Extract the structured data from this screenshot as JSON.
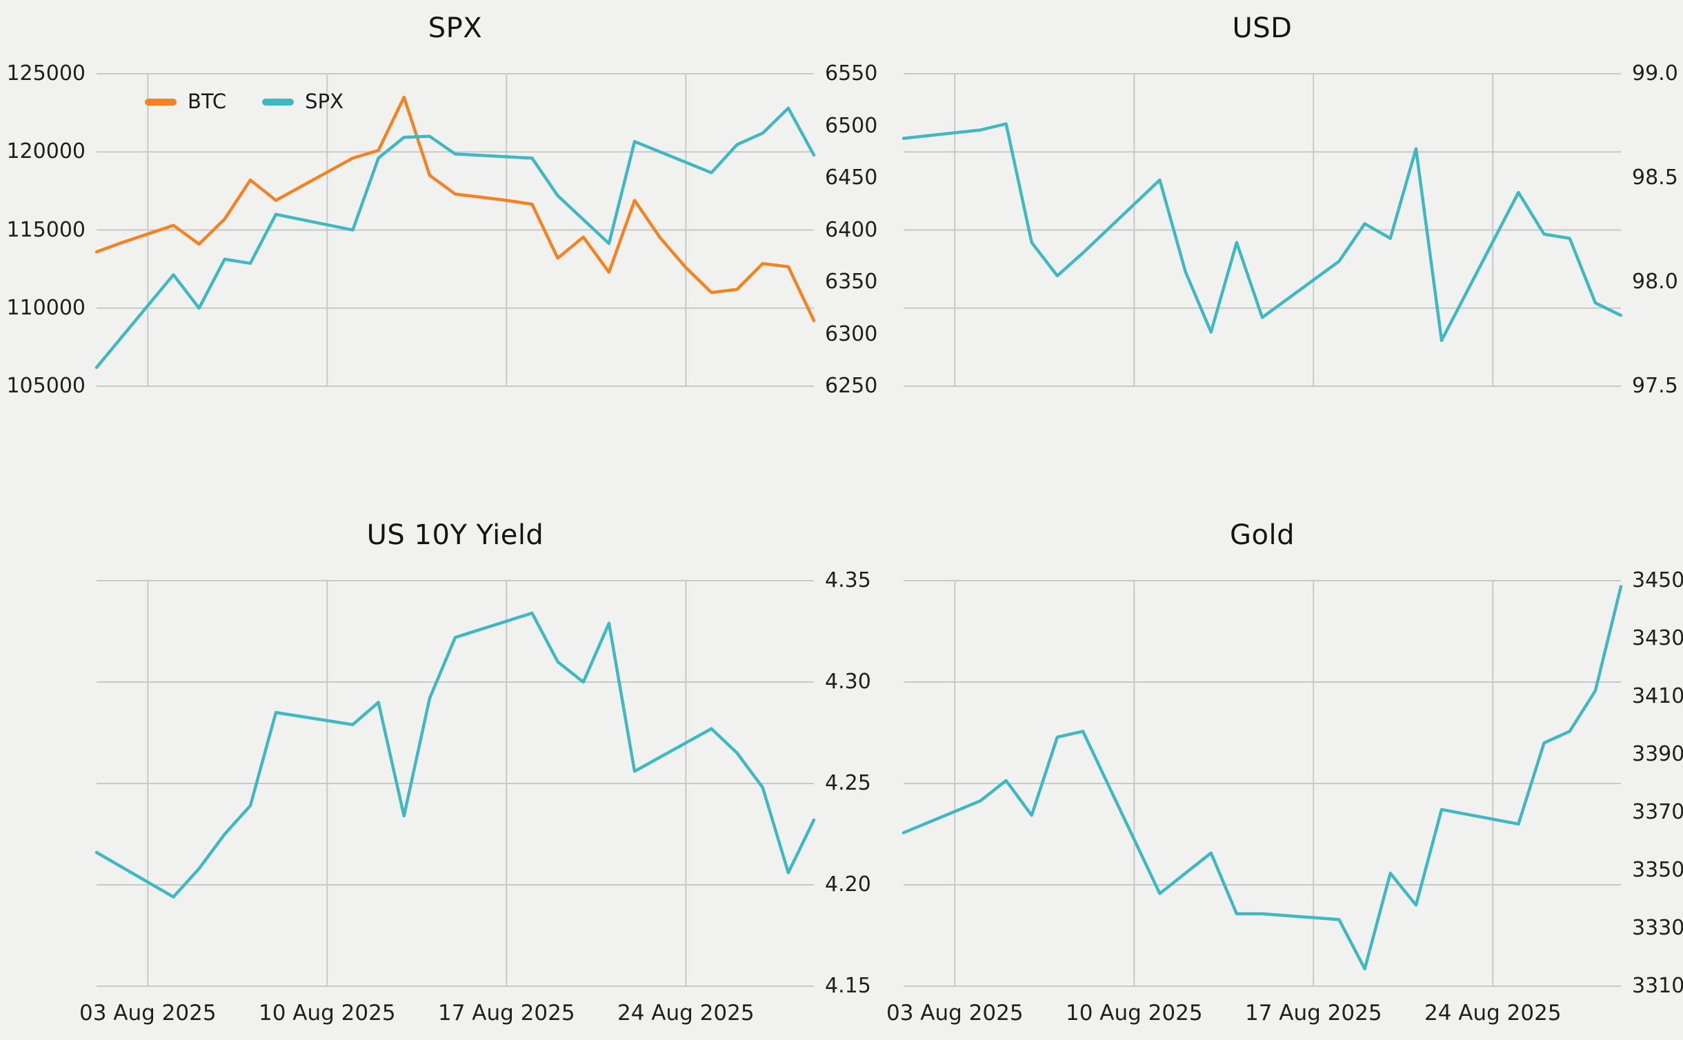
{
  "figure": {
    "background": "#f1f1ef",
    "grid_color": "#c8c8c8",
    "title_color": "#141414",
    "tick_color": "#1f1f1f",
    "accent_orange": "#f5821f",
    "accent_teal": "#3db9c4"
  },
  "x_axis": {
    "date_start": 1,
    "date_end": 29,
    "tick_dates": [
      3,
      10,
      17,
      24
    ],
    "tick_labels": [
      "03 Aug 2025",
      "10 Aug 2025",
      "17 Aug 2025",
      "24 Aug 2025"
    ]
  },
  "chart_data": [
    {
      "id": "spx",
      "type": "line",
      "title": "SPX",
      "legend": [
        {
          "label": "BTC",
          "color": "#f5821f"
        },
        {
          "label": "SPX",
          "color": "#3db9c4"
        }
      ],
      "left_axis": {
        "range": [
          105000,
          125000
        ],
        "tick_labels": [
          "125000",
          "120000",
          "115000",
          "110000",
          "105000"
        ]
      },
      "right_axis": {
        "range": [
          6250,
          6550
        ],
        "tick_labels": [
          "6550",
          "6500",
          "6450",
          "6400",
          "6350",
          "6300",
          "6250"
        ]
      },
      "series": [
        {
          "name": "BTC",
          "axis": "left",
          "color": "#f5821f",
          "dates": [
            1,
            2,
            3,
            4,
            5,
            6,
            7,
            8,
            9,
            10,
            11,
            12,
            13,
            14,
            15,
            16,
            17,
            18,
            19,
            20,
            21,
            22,
            23,
            24,
            25,
            26,
            27,
            28,
            29
          ],
          "values": [
            113600,
            114200,
            114750,
            115300,
            114100,
            115700,
            118200,
            116900,
            117800,
            118700,
            119600,
            120100,
            123500,
            118500,
            117300,
            117100,
            116900,
            116650,
            113200,
            114550,
            112300,
            116900,
            114500,
            112600,
            111000,
            111200,
            112850,
            112650,
            109200
          ]
        },
        {
          "name": "SPX",
          "axis": "right",
          "color": "#3db9c4",
          "dates": [
            1,
            4,
            5,
            6,
            7,
            8,
            11,
            12,
            13,
            14,
            15,
            18,
            19,
            20,
            21,
            22,
            25,
            26,
            27,
            28,
            29
          ],
          "values": [
            6268,
            6357,
            6325,
            6372,
            6368,
            6415,
            6400,
            6469,
            6489,
            6490,
            6473,
            6469,
            6433,
            6410,
            6387,
            6485,
            6455,
            6482,
            6493,
            6517,
            6472
          ]
        }
      ]
    },
    {
      "id": "usd",
      "type": "line",
      "title": "USD",
      "right_axis": {
        "range": [
          97.5,
          99.0
        ],
        "tick_labels": [
          "99.0",
          "98.5",
          "98.0",
          "97.5"
        ]
      },
      "series": [
        {
          "name": "USD",
          "axis": "right",
          "color": "#3db9c4",
          "dates": [
            1,
            4,
            5,
            6,
            7,
            8,
            11,
            12,
            13,
            14,
            15,
            18,
            19,
            20,
            21,
            22,
            25,
            26,
            27,
            28,
            29
          ],
          "values": [
            98.69,
            98.73,
            98.76,
            98.19,
            98.03,
            98.14,
            98.49,
            98.05,
            97.76,
            98.19,
            97.83,
            98.1,
            98.28,
            98.21,
            98.64,
            97.72,
            98.43,
            98.23,
            98.21,
            97.9,
            97.84
          ]
        }
      ]
    },
    {
      "id": "us10y",
      "type": "line",
      "title": "US 10Y Yield",
      "right_axis": {
        "range": [
          4.15,
          4.35
        ],
        "tick_labels": [
          "4.35",
          "4.30",
          "4.25",
          "4.20",
          "4.15"
        ]
      },
      "series": [
        {
          "name": "US 10Y Yield",
          "axis": "right",
          "color": "#3db9c4",
          "dates": [
            1,
            4,
            5,
            6,
            7,
            8,
            11,
            12,
            13,
            14,
            15,
            18,
            19,
            20,
            21,
            22,
            25,
            26,
            27,
            28,
            29
          ],
          "values": [
            4.216,
            4.194,
            4.208,
            4.225,
            4.239,
            4.285,
            4.279,
            4.29,
            4.234,
            4.292,
            4.322,
            4.334,
            4.31,
            4.3,
            4.329,
            4.256,
            4.277,
            4.265,
            4.248,
            4.206,
            4.232
          ]
        }
      ]
    },
    {
      "id": "gold",
      "type": "line",
      "title": "Gold",
      "right_axis": {
        "range": [
          3310,
          3450
        ],
        "tick_labels": [
          "3450",
          "3430",
          "3410",
          "3390",
          "3370",
          "3350",
          "3330",
          "3310"
        ]
      },
      "series": [
        {
          "name": "Gold",
          "axis": "right",
          "color": "#3db9c4",
          "dates": [
            1,
            4,
            5,
            6,
            7,
            8,
            11,
            12,
            13,
            14,
            15,
            18,
            19,
            20,
            21,
            22,
            25,
            26,
            27,
            28,
            29
          ],
          "values": [
            3363,
            3374,
            3381,
            3369,
            3396,
            3398,
            3342,
            3349,
            3356,
            3335,
            3335,
            3333,
            3316,
            3349,
            3338,
            3371,
            3366,
            3394,
            3398,
            3412,
            3448
          ]
        }
      ]
    }
  ]
}
